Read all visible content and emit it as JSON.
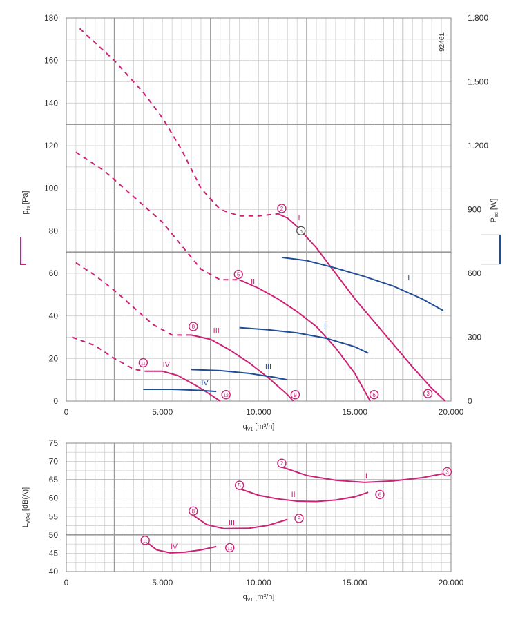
{
  "colors": {
    "pressure": "#cc2277",
    "power": "#1f4e96",
    "grid_minor": "#cfcfcf",
    "grid_major": "#9a9a9a",
    "axis_text": "#333333"
  },
  "chart_data": [
    {
      "type": "line",
      "id": "top",
      "title": "",
      "xlabel": "q_V1 [m³/h]",
      "xlabel_main": "q",
      "xlabel_sub": "V1",
      "xlabel_unit": "[m³/h]",
      "ylabel": "p_fs [Pa]",
      "ylabel_main": "p",
      "ylabel_sub": "fs",
      "ylabel_unit": "[Pa]",
      "y2label": "P_ed [W]",
      "y2label_main": "P",
      "y2label_sub": "ed",
      "y2label_unit": "[W]",
      "xlim": [
        0,
        20000
      ],
      "ylim": [
        0,
        180
      ],
      "y2lim": [
        0,
        1800
      ],
      "xticks": [
        0,
        5000,
        10000,
        15000,
        20000
      ],
      "xtick_labels": [
        "0",
        "5.000",
        "10.000",
        "15.000",
        "20.000"
      ],
      "yticks": [
        0,
        20,
        40,
        60,
        80,
        100,
        120,
        140,
        160,
        180
      ],
      "ytick_labels": [
        "0",
        "20",
        "40",
        "60",
        "80",
        "100",
        "120",
        "140",
        "160",
        "180"
      ],
      "y2ticks": [
        0,
        300,
        600,
        900,
        1200,
        1500,
        1800
      ],
      "y2tick_labels": [
        "0",
        "300",
        "600",
        "900",
        "1.200",
        "1.500",
        "1.800"
      ],
      "grid": true,
      "chart_id_label": "92461",
      "series": [
        {
          "name": "I",
          "kind": "pressure",
          "dashed": [
            [
              700,
              175
            ],
            [
              2500,
              160
            ],
            [
              4000,
              145
            ],
            [
              5000,
              133
            ],
            [
              6000,
              118
            ],
            [
              7000,
              100
            ],
            [
              8000,
              90
            ],
            [
              9000,
              87
            ],
            [
              10000,
              87
            ],
            [
              11000,
              88
            ]
          ],
          "solid": [
            [
              11000,
              88
            ],
            [
              11500,
              86
            ],
            [
              12000,
              82
            ],
            [
              13000,
              72
            ],
            [
              14000,
              60
            ],
            [
              15000,
              48
            ],
            [
              16500,
              32
            ],
            [
              18000,
              16
            ],
            [
              19000,
              6
            ],
            [
              19700,
              0
            ]
          ]
        },
        {
          "name": "II",
          "kind": "pressure",
          "dashed": [
            [
              500,
              117
            ],
            [
              2000,
              108
            ],
            [
              3500,
              96
            ],
            [
              5000,
              84
            ],
            [
              6000,
              73
            ],
            [
              7000,
              62
            ],
            [
              8000,
              57
            ],
            [
              9000,
              57
            ]
          ],
          "solid": [
            [
              9000,
              57
            ],
            [
              10000,
              53
            ],
            [
              11000,
              48
            ],
            [
              12000,
              42
            ],
            [
              13000,
              35
            ],
            [
              14000,
              25
            ],
            [
              15000,
              13
            ],
            [
              15800,
              0
            ]
          ]
        },
        {
          "name": "III",
          "kind": "pressure",
          "dashed": [
            [
              500,
              65
            ],
            [
              1500,
              59
            ],
            [
              2500,
              52
            ],
            [
              3500,
              44
            ],
            [
              4500,
              36
            ],
            [
              5500,
              31
            ],
            [
              6500,
              31
            ]
          ],
          "solid": [
            [
              6500,
              31
            ],
            [
              7500,
              29
            ],
            [
              8500,
              24
            ],
            [
              9500,
              18
            ],
            [
              10500,
              11
            ],
            [
              11500,
              3
            ],
            [
              11800,
              0
            ]
          ]
        },
        {
          "name": "IV",
          "kind": "pressure",
          "dashed": [
            [
              300,
              30
            ],
            [
              1500,
              26
            ],
            [
              2500,
              20
            ],
            [
              3500,
              15
            ],
            [
              4100,
              14
            ]
          ],
          "solid": [
            [
              4100,
              14
            ],
            [
              5000,
              14
            ],
            [
              5800,
              12
            ],
            [
              6800,
              7
            ],
            [
              7500,
              3
            ],
            [
              8000,
              0
            ]
          ]
        },
        {
          "name": "I",
          "kind": "power",
          "solid": [
            [
              11200,
              675
            ],
            [
              12500,
              660
            ],
            [
              14000,
              625
            ],
            [
              15500,
              585
            ],
            [
              17000,
              540
            ],
            [
              18500,
              480
            ],
            [
              19600,
              425
            ]
          ]
        },
        {
          "name": "II",
          "kind": "power",
          "solid": [
            [
              9000,
              345
            ],
            [
              10500,
              335
            ],
            [
              12000,
              320
            ],
            [
              13500,
              295
            ],
            [
              15000,
              255
            ],
            [
              15700,
              225
            ]
          ]
        },
        {
          "name": "III",
          "kind": "power",
          "solid": [
            [
              6500,
              148
            ],
            [
              8000,
              143
            ],
            [
              9500,
              130
            ],
            [
              10800,
              112
            ],
            [
              11500,
              100
            ]
          ]
        },
        {
          "name": "IV",
          "kind": "power",
          "solid": [
            [
              4000,
              55
            ],
            [
              5500,
              55
            ],
            [
              7000,
              50
            ],
            [
              7800,
              45
            ]
          ]
        }
      ],
      "curve_labels": [
        {
          "text": "I",
          "kind": "pressure",
          "x": 12100,
          "y": 85
        },
        {
          "text": "II",
          "kind": "pressure",
          "x": 9700,
          "y": 55
        },
        {
          "text": "III",
          "kind": "pressure",
          "x": 7800,
          "y": 32
        },
        {
          "text": "IV",
          "kind": "pressure",
          "x": 5200,
          "y": 16
        },
        {
          "text": "I",
          "kind": "power",
          "x": 17800,
          "y": 568
        },
        {
          "text": "II",
          "kind": "power",
          "x": 13500,
          "y": 340
        },
        {
          "text": "III",
          "kind": "power",
          "x": 10500,
          "y": 150
        },
        {
          "text": "IV",
          "kind": "power",
          "x": 7200,
          "y": 74
        }
      ],
      "markers": [
        {
          "text": "2",
          "x": 11200,
          "y": 90.5
        },
        {
          "text": "n",
          "x": 12200,
          "y": 80,
          "grey": true
        },
        {
          "text": "3",
          "x": 18800,
          "y": 3.5
        },
        {
          "text": "5",
          "x": 8950,
          "y": 59.5
        },
        {
          "text": "6",
          "x": 16000,
          "y": 3
        },
        {
          "text": "8",
          "x": 6600,
          "y": 35
        },
        {
          "text": "9",
          "x": 11900,
          "y": 3
        },
        {
          "text": "11",
          "x": 4000,
          "y": 18
        },
        {
          "text": "12",
          "x": 8300,
          "y": 3
        }
      ]
    },
    {
      "type": "line",
      "id": "bottom",
      "title": "",
      "xlabel": "q_V1 [m³/h]",
      "xlabel_main": "q",
      "xlabel_sub": "V1",
      "xlabel_unit": "[m³/h]",
      "ylabel": "L_WAd [dB(A)]",
      "ylabel_main": "L",
      "ylabel_sub": "WAd",
      "ylabel_unit": "[dB(A)]",
      "xlim": [
        0,
        20000
      ],
      "ylim": [
        40,
        75
      ],
      "xticks": [
        0,
        5000,
        10000,
        15000,
        20000
      ],
      "xtick_labels": [
        "0",
        "5.000",
        "10.000",
        "15.000",
        "20.000"
      ],
      "yticks": [
        40,
        45,
        50,
        55,
        60,
        65,
        70,
        75
      ],
      "ytick_labels": [
        "40",
        "45",
        "50",
        "55",
        "60",
        "65",
        "70",
        "75"
      ],
      "grid": true,
      "series": [
        {
          "name": "I",
          "kind": "pressure",
          "solid": [
            [
              11200,
              68.5
            ],
            [
              12500,
              66.2
            ],
            [
              14000,
              64.9
            ],
            [
              15500,
              64.3
            ],
            [
              17000,
              64.7
            ],
            [
              18500,
              65.6
            ],
            [
              19700,
              66.8
            ]
          ]
        },
        {
          "name": "II",
          "kind": "pressure",
          "solid": [
            [
              9000,
              62.6
            ],
            [
              10000,
              60.8
            ],
            [
              11000,
              59.8
            ],
            [
              12000,
              59.2
            ],
            [
              13000,
              59.1
            ],
            [
              14000,
              59.5
            ],
            [
              15000,
              60.4
            ],
            [
              15700,
              61.6
            ]
          ]
        },
        {
          "name": "III",
          "kind": "pressure",
          "solid": [
            [
              6600,
              55.3
            ],
            [
              7300,
              52.8
            ],
            [
              8200,
              51.7
            ],
            [
              9500,
              51.8
            ],
            [
              10500,
              52.6
            ],
            [
              11500,
              54.2
            ]
          ]
        },
        {
          "name": "IV",
          "kind": "pressure",
          "solid": [
            [
              4100,
              48.3
            ],
            [
              4700,
              45.9
            ],
            [
              5400,
              45.1
            ],
            [
              6200,
              45.3
            ],
            [
              7000,
              45.9
            ],
            [
              7800,
              46.8
            ]
          ]
        }
      ],
      "curve_labels": [
        {
          "text": "I",
          "kind": "pressure",
          "x": 15600,
          "y": 65.4
        },
        {
          "text": "II",
          "kind": "pressure",
          "x": 11800,
          "y": 60.3
        },
        {
          "text": "III",
          "kind": "pressure",
          "x": 8600,
          "y": 52.6
        },
        {
          "text": "IV",
          "kind": "pressure",
          "x": 5600,
          "y": 46.2
        }
      ],
      "markers": [
        {
          "text": "2",
          "x": 11200,
          "y": 69.5
        },
        {
          "text": "3",
          "x": 19800,
          "y": 67.2
        },
        {
          "text": "5",
          "x": 9000,
          "y": 63.5
        },
        {
          "text": "6",
          "x": 16300,
          "y": 61
        },
        {
          "text": "8",
          "x": 6600,
          "y": 56.5
        },
        {
          "text": "9",
          "x": 12100,
          "y": 54.5
        },
        {
          "text": "11",
          "x": 4100,
          "y": 48.5
        },
        {
          "text": "12",
          "x": 8500,
          "y": 46.5
        }
      ]
    }
  ]
}
